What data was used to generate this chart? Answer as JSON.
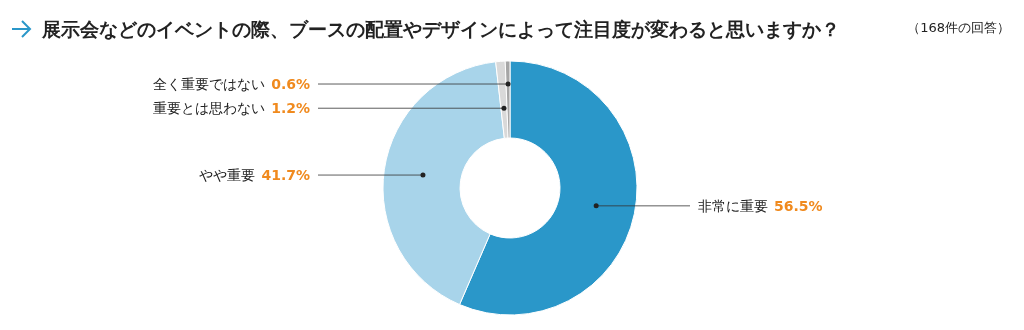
{
  "chart_data": {
    "type": "donut",
    "title": "展示会などのイベントの際、ブースの配置やデザインによって注目度が変わると思いますか？",
    "annotations": [
      "（168件の回答）"
    ],
    "categories": [
      "非常に重要",
      "やや重要",
      "重要とは思わない",
      "全く重要ではない"
    ],
    "values": [
      56.5,
      41.7,
      1.2,
      0.6
    ],
    "colors": [
      "#2a97c9",
      "#a8d4ea",
      "#d9d9d9",
      "#a6a6a6"
    ],
    "value_labels": [
      "56.5%",
      "41.7%",
      "1.2%",
      "0.6%"
    ]
  }
}
